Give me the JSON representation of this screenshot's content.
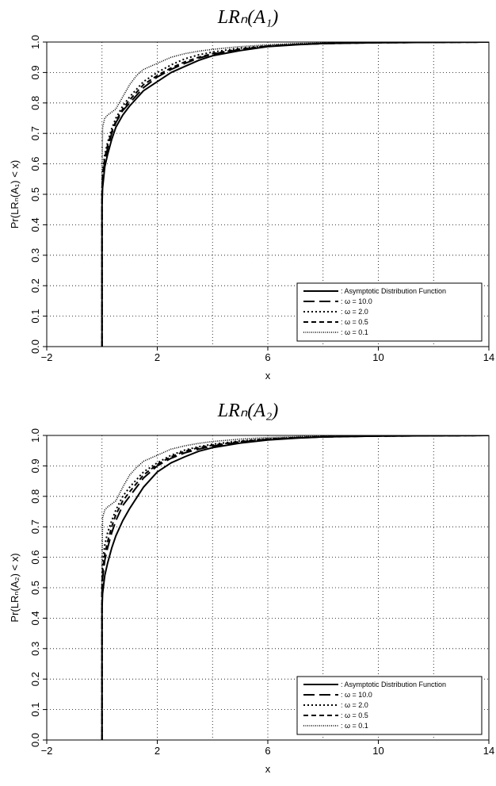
{
  "chart_data": [
    {
      "type": "line",
      "title": "LRₙ(A₁)",
      "xlabel": "x",
      "ylabel": "Pr(LRₙ(A₁) < x)",
      "xlim": [
        -2,
        14
      ],
      "ylim": [
        0,
        1
      ],
      "xticks": [
        -2,
        2,
        6,
        10,
        14
      ],
      "xtick_labels": [
        "−2",
        "2",
        "6",
        "10",
        "14"
      ],
      "yticks": [
        0,
        0.1,
        0.2,
        0.3,
        0.4,
        0.5,
        0.6,
        0.7,
        0.8,
        0.9,
        1.0
      ],
      "ytick_labels": [
        "0.0",
        "0.1",
        "0.2",
        "0.3",
        "0.4",
        "0.5",
        "0.6",
        "0.7",
        "0.8",
        "0.9",
        "1.0"
      ],
      "grid": true,
      "legend_position": "bottom-right",
      "series": [
        {
          "name": ": Asymptotic Distribution Function",
          "style": "solid",
          "x": [
            0,
            0,
            0.02,
            0.1,
            0.2,
            0.35,
            0.5,
            0.75,
            1.0,
            1.5,
            2.0,
            2.5,
            3.0,
            3.5,
            4.0,
            5.0,
            6.0,
            7.0,
            8.0,
            10.0,
            12.0,
            14.0
          ],
          "y": [
            0,
            0.46,
            0.52,
            0.59,
            0.63,
            0.68,
            0.72,
            0.76,
            0.79,
            0.84,
            0.87,
            0.9,
            0.92,
            0.94,
            0.955,
            0.972,
            0.985,
            0.991,
            0.995,
            0.998,
            0.999,
            1.0
          ]
        },
        {
          "name": ":   ω  =  10.0",
          "style": "longdash",
          "x": [
            0,
            0,
            0.02,
            0.1,
            0.2,
            0.35,
            0.5,
            0.75,
            1.0,
            1.5,
            2.0,
            2.5,
            3.0,
            3.5,
            4.0,
            5.0,
            6.0,
            7.0,
            8.0,
            10.0,
            12.0,
            14.0
          ],
          "y": [
            0,
            0.5,
            0.55,
            0.61,
            0.65,
            0.7,
            0.735,
            0.775,
            0.8,
            0.85,
            0.885,
            0.91,
            0.93,
            0.947,
            0.96,
            0.975,
            0.986,
            0.992,
            0.995,
            0.998,
            0.999,
            1.0
          ]
        },
        {
          "name": ":   ω  =   2.0",
          "style": "dotted",
          "x": [
            0,
            0,
            0.02,
            0.1,
            0.2,
            0.35,
            0.5,
            0.75,
            1.0,
            1.5,
            2.0,
            2.5,
            3.0,
            3.5,
            4.0,
            5.0,
            6.0,
            7.0,
            8.0,
            10.0,
            12.0,
            14.0
          ],
          "y": [
            0,
            0.52,
            0.57,
            0.63,
            0.67,
            0.715,
            0.75,
            0.79,
            0.82,
            0.87,
            0.9,
            0.925,
            0.945,
            0.958,
            0.967,
            0.98,
            0.988,
            0.993,
            0.996,
            0.998,
            0.999,
            1.0
          ]
        },
        {
          "name": ":   ω  =   0.5",
          "style": "shortdash",
          "x": [
            0,
            0,
            0.02,
            0.1,
            0.2,
            0.35,
            0.5,
            0.75,
            1.0,
            1.5,
            2.0,
            2.5,
            3.0,
            3.5,
            4.0,
            5.0,
            6.0,
            7.0,
            8.0,
            10.0,
            12.0,
            14.0
          ],
          "y": [
            0,
            0.5,
            0.56,
            0.62,
            0.66,
            0.705,
            0.74,
            0.78,
            0.81,
            0.86,
            0.89,
            0.915,
            0.935,
            0.95,
            0.962,
            0.977,
            0.987,
            0.992,
            0.995,
            0.998,
            0.999,
            1.0
          ]
        },
        {
          "name": ":   ω  =   0.1",
          "style": "finedot",
          "x": [
            0,
            0,
            0.02,
            0.1,
            0.2,
            0.35,
            0.5,
            0.75,
            1.0,
            1.25,
            1.5,
            2.0,
            2.5,
            3.0,
            3.5,
            4.0,
            5.0,
            6.0,
            7.0,
            8.0,
            10.0,
            12.0,
            14.0
          ],
          "y": [
            0,
            0.55,
            0.72,
            0.75,
            0.76,
            0.77,
            0.78,
            0.82,
            0.86,
            0.89,
            0.91,
            0.93,
            0.95,
            0.962,
            0.97,
            0.976,
            0.985,
            0.991,
            0.995,
            0.997,
            0.999,
            1.0,
            1.0
          ]
        }
      ]
    },
    {
      "type": "line",
      "title": "LRₙ(A₂)",
      "xlabel": "x",
      "ylabel": "Pr(LRₙ(A₂) < x)",
      "xlim": [
        -2,
        14
      ],
      "ylim": [
        0,
        1
      ],
      "xticks": [
        -2,
        2,
        6,
        10,
        14
      ],
      "xtick_labels": [
        "−2",
        "2",
        "6",
        "10",
        "14"
      ],
      "yticks": [
        0,
        0.1,
        0.2,
        0.3,
        0.4,
        0.5,
        0.6,
        0.7,
        0.8,
        0.9,
        1.0
      ],
      "ytick_labels": [
        "0.0",
        "0.1",
        "0.2",
        "0.3",
        "0.4",
        "0.5",
        "0.6",
        "0.7",
        "0.8",
        "0.9",
        "1.0"
      ],
      "grid": true,
      "legend_position": "bottom-right",
      "series": [
        {
          "name": ": Asymptotic Distribution Function",
          "style": "solid",
          "x": [
            0,
            0,
            0.02,
            0.1,
            0.2,
            0.35,
            0.5,
            0.75,
            1.0,
            1.5,
            2.0,
            2.5,
            3.0,
            3.5,
            4.0,
            5.0,
            6.0,
            7.0,
            8.0,
            10.0,
            12.0,
            14.0
          ],
          "y": [
            0,
            0.43,
            0.48,
            0.54,
            0.58,
            0.63,
            0.67,
            0.72,
            0.76,
            0.83,
            0.88,
            0.91,
            0.93,
            0.948,
            0.96,
            0.975,
            0.985,
            0.991,
            0.995,
            0.998,
            0.999,
            1.0
          ]
        },
        {
          "name": ":   ω  =  10.0",
          "style": "longdash",
          "x": [
            0,
            0,
            0.02,
            0.1,
            0.2,
            0.35,
            0.5,
            0.75,
            1.0,
            1.5,
            2.0,
            2.5,
            3.0,
            3.5,
            4.0,
            5.0,
            6.0,
            7.0,
            8.0,
            10.0,
            12.0,
            14.0
          ],
          "y": [
            0,
            0.48,
            0.53,
            0.59,
            0.63,
            0.68,
            0.72,
            0.77,
            0.8,
            0.86,
            0.9,
            0.925,
            0.943,
            0.955,
            0.965,
            0.978,
            0.987,
            0.992,
            0.995,
            0.998,
            0.999,
            1.0
          ]
        },
        {
          "name": ":   ω  =   2.0",
          "style": "dotted",
          "x": [
            0,
            0,
            0.02,
            0.1,
            0.2,
            0.35,
            0.5,
            0.75,
            1.0,
            1.5,
            2.0,
            2.5,
            3.0,
            3.5,
            4.0,
            5.0,
            6.0,
            7.0,
            8.0,
            10.0,
            12.0,
            14.0
          ],
          "y": [
            0,
            0.53,
            0.58,
            0.64,
            0.68,
            0.72,
            0.755,
            0.8,
            0.83,
            0.88,
            0.91,
            0.935,
            0.952,
            0.963,
            0.971,
            0.982,
            0.989,
            0.993,
            0.996,
            0.998,
            0.999,
            1.0
          ]
        },
        {
          "name": ":   ω  =   0.5",
          "style": "shortdash",
          "x": [
            0,
            0,
            0.02,
            0.1,
            0.2,
            0.35,
            0.5,
            0.75,
            1.0,
            1.5,
            2.0,
            2.5,
            3.0,
            3.5,
            4.0,
            5.0,
            6.0,
            7.0,
            8.0,
            10.0,
            12.0,
            14.0
          ],
          "y": [
            0,
            0.5,
            0.55,
            0.61,
            0.65,
            0.7,
            0.74,
            0.785,
            0.815,
            0.87,
            0.905,
            0.93,
            0.948,
            0.96,
            0.968,
            0.98,
            0.988,
            0.993,
            0.996,
            0.998,
            0.999,
            1.0
          ]
        },
        {
          "name": ":   ω  =   0.1",
          "style": "finedot",
          "x": [
            0,
            0,
            0.02,
            0.1,
            0.2,
            0.35,
            0.5,
            0.75,
            1.0,
            1.25,
            1.5,
            2.0,
            2.5,
            3.0,
            3.5,
            4.0,
            5.0,
            6.0,
            7.0,
            8.0,
            10.0,
            12.0,
            14.0
          ],
          "y": [
            0,
            0.55,
            0.73,
            0.755,
            0.765,
            0.775,
            0.785,
            0.83,
            0.87,
            0.895,
            0.915,
            0.935,
            0.955,
            0.966,
            0.974,
            0.98,
            0.988,
            0.993,
            0.996,
            0.998,
            0.999,
            1.0,
            1.0
          ]
        }
      ]
    }
  ]
}
